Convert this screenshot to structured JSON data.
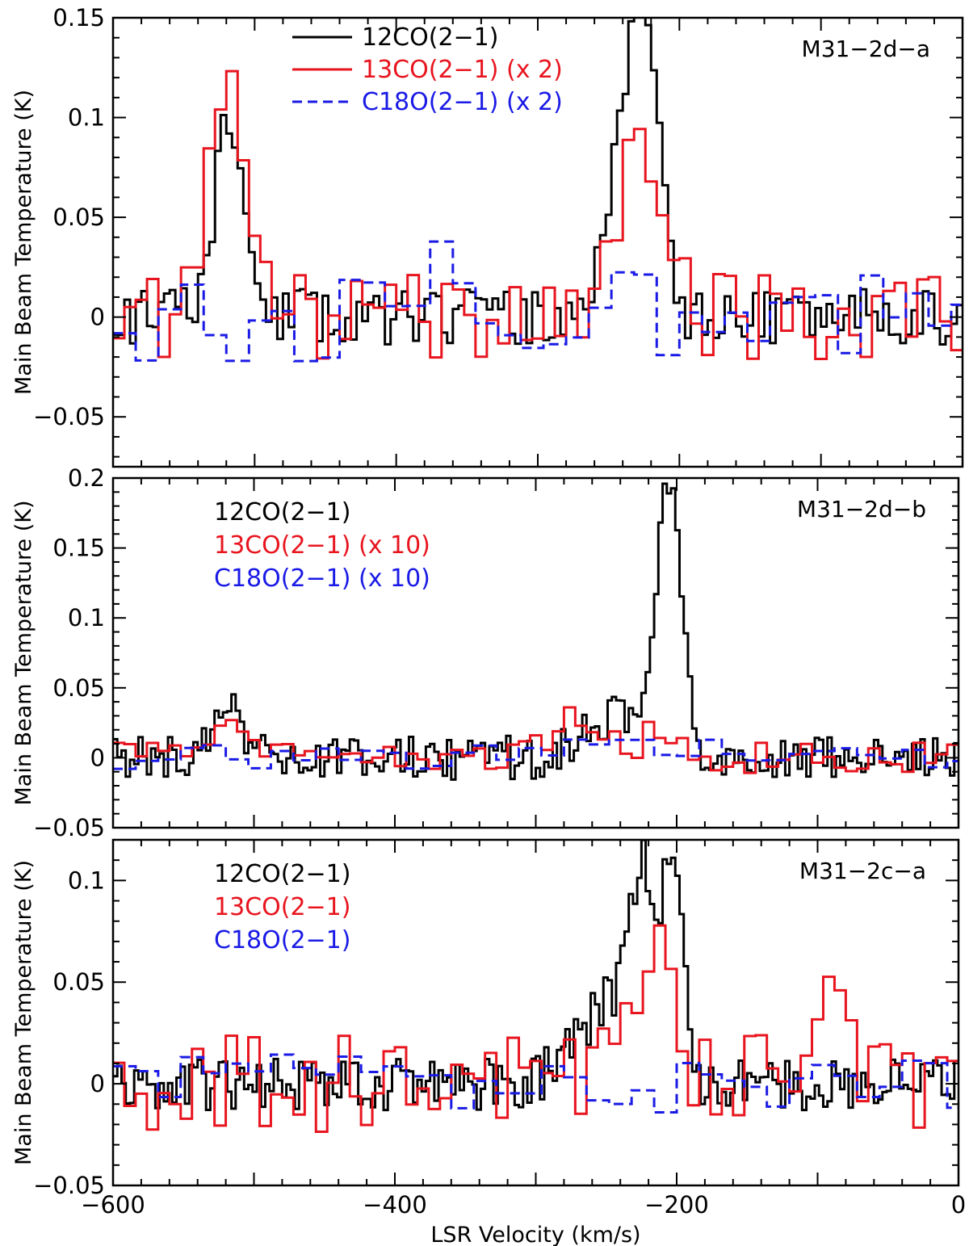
{
  "chart_data": [
    {
      "type": "line",
      "panel_id": "a",
      "title": "M31−2d−a",
      "xlabel": "",
      "ylabel": "Main Beam Temperature (K)",
      "xlim": [
        -600,
        0
      ],
      "ylim": [
        -0.075,
        0.15
      ],
      "yticks": [
        -0.05,
        0,
        0.05,
        0.1,
        0.15
      ],
      "ytick_labels": [
        "−0.05",
        "0",
        "0.05",
        "0.1",
        "0.15"
      ],
      "legend_position": "top-left",
      "series": [
        {
          "name": "12CO(2−1)",
          "color": "#000000",
          "dash": "solid",
          "peaks": [
            {
              "v": -518,
              "t": 0.1,
              "w": 10
            },
            {
              "v": -235,
              "t": 0.1,
              "w": 14
            },
            {
              "v": -222,
              "t": 0.08,
              "w": 10
            }
          ],
          "noise": 0.014,
          "step": 4,
          "seed": 11
        },
        {
          "name": "13CO(2−1) (x 2)",
          "color": "#e8141e",
          "dash": "solid",
          "peaks": [
            {
              "v": -520,
              "t": 0.11,
              "w": 12
            },
            {
              "v": -228,
              "t": 0.085,
              "w": 16
            }
          ],
          "noise": 0.022,
          "step": 8,
          "seed": 12
        },
        {
          "name": "C18O(2−1) (x 2)",
          "color": "#1a1ae6",
          "dash": "dashed",
          "peaks": [
            {
              "v": -360,
              "t": 0.035,
              "w": 12
            },
            {
              "v": -230,
              "t": 0.02,
              "w": 10
            }
          ],
          "noise": 0.024,
          "step": 16,
          "seed": 13
        }
      ]
    },
    {
      "type": "line",
      "panel_id": "b",
      "title": "M31−2d−b",
      "xlabel": "",
      "ylabel": "Main Beam Temperature (K)",
      "xlim": [
        -600,
        0
      ],
      "ylim": [
        -0.05,
        0.2
      ],
      "yticks": [
        -0.05,
        0,
        0.05,
        0.1,
        0.15,
        0.2
      ],
      "ytick_labels": [
        "−0.05",
        "0",
        "0.05",
        "0.1",
        "0.15",
        "0.2"
      ],
      "legend_position": "top-left",
      "series": [
        {
          "name": "12CO(2−1)",
          "color": "#000000",
          "dash": "solid",
          "peaks": [
            {
              "v": -520,
              "t": 0.04,
              "w": 8
            },
            {
              "v": -205,
              "t": 0.19,
              "w": 9
            },
            {
              "v": -245,
              "t": 0.03,
              "w": 22
            }
          ],
          "noise": 0.016,
          "step": 3,
          "seed": 21
        },
        {
          "name": "13CO(2−1) (x 10)",
          "color": "#e8141e",
          "dash": "solid",
          "peaks": [
            {
              "v": -520,
              "t": 0.03,
              "w": 10
            },
            {
              "v": -270,
              "t": 0.03,
              "w": 16
            },
            {
              "v": -210,
              "t": 0.02,
              "w": 14
            }
          ],
          "noise": 0.011,
          "step": 8,
          "seed": 22
        },
        {
          "name": "C18O(2−1) (x 10)",
          "color": "#1a1ae6",
          "dash": "dashed",
          "peaks": [
            {
              "v": -240,
              "t": 0.014,
              "w": 40
            }
          ],
          "noise": 0.009,
          "step": 16,
          "seed": 23
        }
      ]
    },
    {
      "type": "line",
      "panel_id": "c",
      "title": "M31−2c−a",
      "xlabel": "LSR Velocity (km/s)",
      "ylabel": "Main Beam Temperature (K)",
      "xlim": [
        -600,
        0
      ],
      "ylim": [
        -0.05,
        0.12
      ],
      "yticks": [
        -0.05,
        0,
        0.05,
        0.1
      ],
      "ytick_labels": [
        "−0.05",
        "0",
        "0.05",
        "0.1"
      ],
      "xticks": [
        -600,
        -400,
        -200,
        0
      ],
      "xtick_labels": [
        "−600",
        "−400",
        "−200",
        "0"
      ],
      "legend_position": "top-left",
      "series": [
        {
          "name": "12CO(2−1)",
          "color": "#000000",
          "dash": "solid",
          "peaks": [
            {
              "v": -225,
              "t": 0.08,
              "w": 8
            },
            {
              "v": -203,
              "t": 0.105,
              "w": 7
            },
            {
              "v": -245,
              "t": 0.04,
              "w": 25
            }
          ],
          "noise": 0.013,
          "step": 3,
          "seed": 31
        },
        {
          "name": "13CO(2−1)",
          "color": "#e8141e",
          "dash": "solid",
          "peaks": [
            {
              "v": -215,
              "t": 0.055,
              "w": 16
            },
            {
              "v": -90,
              "t": 0.04,
              "w": 10
            }
          ],
          "noise": 0.024,
          "step": 8,
          "seed": 32
        },
        {
          "name": "C18O(2−1)",
          "color": "#1a1ae6",
          "dash": "dashed",
          "peaks": [
            {
              "v": -280,
              "t": 0.02,
              "w": 15
            }
          ],
          "noise": 0.015,
          "step": 16,
          "seed": 33
        }
      ]
    }
  ]
}
